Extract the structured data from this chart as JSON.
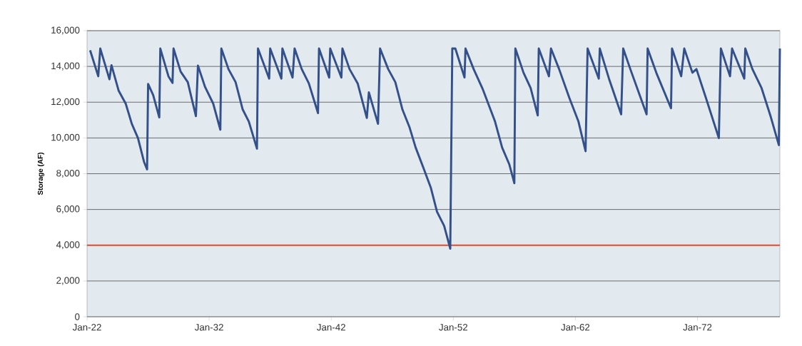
{
  "chart_data": {
    "type": "line",
    "ylabel": "Storage (AF)",
    "x": [
      "1922-04",
      "1922-12",
      "1923-02",
      "1923-11",
      "1924-01",
      "1924-08",
      "1925-03",
      "1925-09",
      "1926-03",
      "1926-09",
      "1926-12",
      "1927-01",
      "1927-06",
      "1927-12",
      "1928-01",
      "1928-09",
      "1929-01",
      "1929-02",
      "1929-09",
      "1930-04",
      "1930-12",
      "1931-02",
      "1931-09",
      "1932-05",
      "1932-12",
      "1933-01",
      "1933-08",
      "1934-03",
      "1934-10",
      "1935-04",
      "1935-12",
      "1936-01",
      "1936-12",
      "1937-01",
      "1937-12",
      "1938-01",
      "1938-11",
      "1939-01",
      "1939-08",
      "1940-03",
      "1940-12",
      "1941-01",
      "1941-11",
      "1941-12",
      "1942-11",
      "1942-12",
      "1943-07",
      "1944-03",
      "1944-12",
      "1945-02",
      "1945-11",
      "1946-01",
      "1946-09",
      "1947-04",
      "1947-11",
      "1948-06",
      "1948-12",
      "1949-08",
      "1950-03",
      "1950-09",
      "1951-04",
      "1951-10",
      "1951-12",
      "1952-03",
      "1952-12",
      "1953-01",
      "1953-09",
      "1954-06",
      "1955-06",
      "1956-01",
      "1956-08",
      "1957-01",
      "1957-02",
      "1957-10",
      "1958-05",
      "1958-12",
      "1959-01",
      "1959-11",
      "1960-01",
      "1960-09",
      "1961-07",
      "1962-04",
      "1962-11",
      "1963-01",
      "1963-12",
      "1964-01",
      "1964-10",
      "1965-10",
      "1965-12",
      "1966-07",
      "1967-11",
      "1967-12",
      "1968-09",
      "1969-11",
      "1969-12",
      "1970-09",
      "1970-12",
      "1971-08",
      "1971-12",
      "1972-10",
      "1973-10",
      "1973-12",
      "1974-09",
      "1974-11",
      "1975-11",
      "1975-12",
      "1976-07",
      "1977-04",
      "1978-01",
      "1978-09",
      "1978-10"
    ],
    "series": [
      {
        "color": "#34508a",
        "values": [
          14900,
          13450,
          15000,
          13280,
          14070,
          12650,
          11920,
          10790,
          10000,
          8660,
          8240,
          13020,
          12390,
          11150,
          15000,
          13450,
          13080,
          15000,
          13710,
          13120,
          11220,
          14050,
          12850,
          11920,
          10460,
          15000,
          13850,
          13120,
          11590,
          10920,
          9400,
          15000,
          13320,
          15000,
          13320,
          15000,
          13380,
          15000,
          13850,
          13050,
          11390,
          15000,
          13380,
          15000,
          13380,
          15000,
          13850,
          13050,
          11120,
          12550,
          10790,
          15000,
          13850,
          13120,
          11590,
          10590,
          9460,
          8270,
          7200,
          5870,
          5080,
          3810,
          15000,
          15000,
          13380,
          15000,
          13850,
          12720,
          10920,
          9460,
          8530,
          7470,
          15000,
          13650,
          12790,
          11260,
          15000,
          13450,
          15000,
          13850,
          12250,
          10920,
          9260,
          15000,
          13320,
          15000,
          13320,
          11320,
          15000,
          13850,
          11320,
          15000,
          13580,
          11660,
          15000,
          13450,
          15000,
          13650,
          13850,
          12120,
          9990,
          15000,
          13450,
          15000,
          13320,
          15000,
          13850,
          12790,
          11190,
          9600,
          15000
        ]
      }
    ],
    "xlim": [
      "1922-01",
      "1978-10"
    ],
    "xticks": [
      {
        "value": "1922-01",
        "label": "Jan-22"
      },
      {
        "value": "1932-01",
        "label": "Jan-32"
      },
      {
        "value": "1942-01",
        "label": "Jan-42"
      },
      {
        "value": "1952-01",
        "label": "Jan-52"
      },
      {
        "value": "1962-01",
        "label": "Jan-62"
      },
      {
        "value": "1972-01",
        "label": "Jan-72"
      }
    ],
    "ylim": [
      0,
      16000
    ],
    "yticks": [
      0,
      {
        "value": 2000,
        "label": "2,000"
      },
      {
        "value": 4000,
        "label": "4,000"
      },
      {
        "value": 6000,
        "label": "6,000"
      },
      {
        "value": 8000,
        "label": "8,000"
      },
      {
        "value": 10000,
        "label": "10,000"
      },
      {
        "value": 12000,
        "label": "12,000"
      },
      {
        "value": 14000,
        "label": "14,000"
      },
      {
        "value": 16000,
        "label": "16,000"
      }
    ],
    "ref_lines": [
      {
        "axis": "y",
        "value": 4000,
        "color": "#f04a2e"
      }
    ],
    "grid": "y",
    "line_style": "solid"
  }
}
